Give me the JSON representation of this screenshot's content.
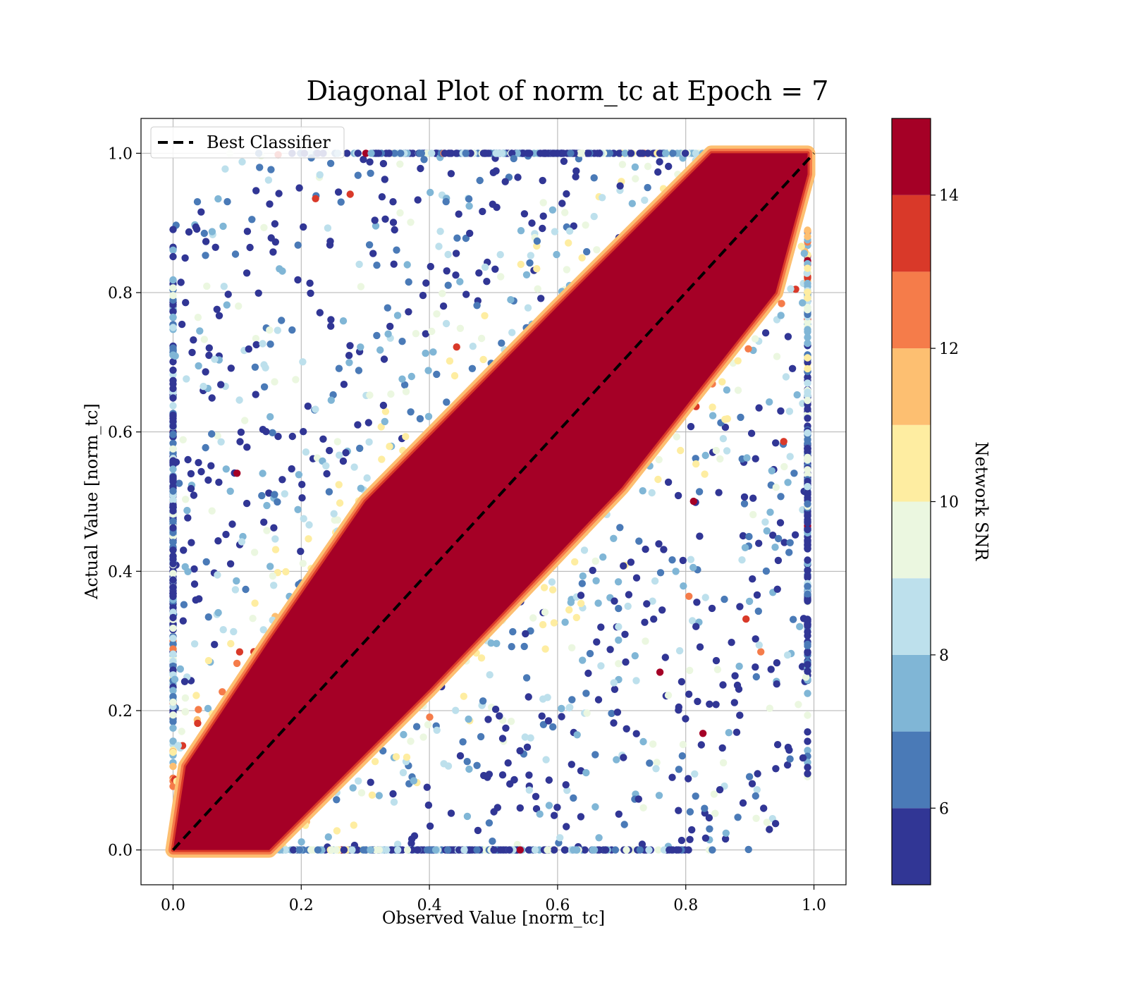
{
  "chart_data": {
    "type": "scatter",
    "title": "Diagonal Plot of norm_tc at Epoch = 7",
    "xlabel": "Observed Value [norm_tc]",
    "ylabel": "Actual Value [norm_tc]",
    "xlim": [
      -0.05,
      1.05
    ],
    "ylim": [
      -0.05,
      1.05
    ],
    "xticks": [
      0.0,
      0.2,
      0.4,
      0.6,
      0.8,
      1.0
    ],
    "yticks": [
      0.0,
      0.2,
      0.4,
      0.6,
      0.8,
      1.0
    ],
    "xtick_labels": [
      "0.0",
      "0.2",
      "0.4",
      "0.6",
      "0.8",
      "1.0"
    ],
    "ytick_labels": [
      "0.0",
      "0.2",
      "0.4",
      "0.6",
      "0.8",
      "1.0"
    ],
    "grid": true,
    "legend": {
      "placement": "top-left",
      "entries": [
        {
          "label": "Best Classifier",
          "style": "dashed",
          "color": "#000000"
        }
      ]
    },
    "reference_line": {
      "name": "Best Classifier",
      "x": [
        0.0,
        1.0
      ],
      "y": [
        0.0,
        1.0
      ]
    },
    "high_snr_band": {
      "description_value": "dense points with Network SNR >= 14 along the diagonal",
      "snr": 15,
      "upper_edge": [
        [
          0.0,
          0.0
        ],
        [
          0.02,
          0.12
        ],
        [
          0.15,
          0.3
        ],
        [
          0.3,
          0.5
        ],
        [
          0.6,
          0.78
        ],
        [
          0.84,
          1.0
        ],
        [
          0.99,
          1.0
        ]
      ],
      "lower_edge": [
        [
          0.99,
          0.97
        ],
        [
          0.94,
          0.8
        ],
        [
          0.7,
          0.52
        ],
        [
          0.4,
          0.23
        ],
        [
          0.15,
          0.0
        ],
        [
          0.01,
          0.0
        ]
      ]
    },
    "scatter_series": {
      "color_variable": "Network SNR",
      "note": "scattered off-diagonal points, sampled distribution",
      "sample_count": 2600,
      "snr_range": [
        5,
        15
      ]
    },
    "colorbar": {
      "label": "Network SNR",
      "range": [
        5,
        15
      ],
      "ticks": [
        6,
        8,
        10,
        12,
        14
      ],
      "tick_labels": [
        "6",
        "8",
        "10",
        "12",
        "14"
      ],
      "bins": [
        {
          "from": 5,
          "to": 6,
          "color": "#313695"
        },
        {
          "from": 6,
          "to": 7,
          "color": "#4a7ab7"
        },
        {
          "from": 7,
          "to": 8,
          "color": "#80b6d6"
        },
        {
          "from": 8,
          "to": 9,
          "color": "#bde0ec"
        },
        {
          "from": 9,
          "to": 10,
          "color": "#ebf7e0"
        },
        {
          "from": 10,
          "to": 11,
          "color": "#feeda1"
        },
        {
          "from": 11,
          "to": 12,
          "color": "#fdbf71"
        },
        {
          "from": 12,
          "to": 13,
          "color": "#f57c4a"
        },
        {
          "from": 13,
          "to": 14,
          "color": "#d93929"
        },
        {
          "from": 14,
          "to": 15,
          "color": "#a50026"
        }
      ]
    }
  }
}
